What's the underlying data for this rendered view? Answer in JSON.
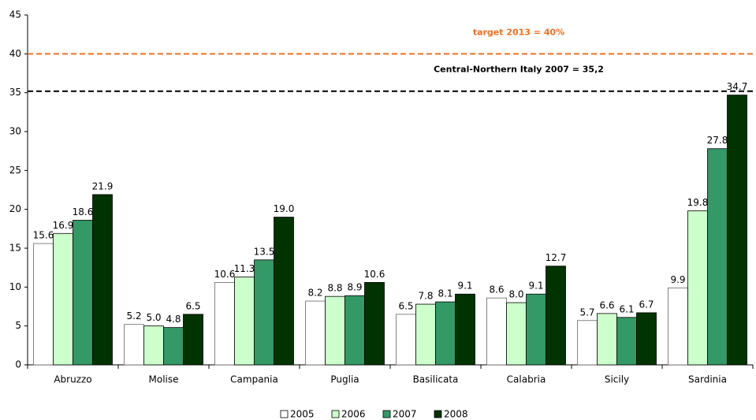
{
  "chart_data": {
    "type": "bar",
    "categories": [
      "Abruzzo",
      "Molise",
      "Campania",
      "Puglia",
      "Basilicata",
      "Calabria",
      "Sicily",
      "Sardinia"
    ],
    "series": [
      {
        "name": "2005",
        "color": "#ffffff",
        "values": [
          15.6,
          5.2,
          10.6,
          8.2,
          6.5,
          8.6,
          5.7,
          9.9
        ],
        "value_labels": [
          "15.6",
          "5.2",
          "10.6",
          "8.2",
          "6.5",
          "8.6",
          "5.7",
          "9.9"
        ]
      },
      {
        "name": "2006",
        "color": "#ccffcc",
        "values": [
          16.9,
          5.0,
          11.3,
          8.8,
          7.8,
          8.0,
          6.6,
          19.8
        ],
        "value_labels": [
          "16.9",
          "5.0",
          "11.3",
          "8.8",
          "7.8",
          "8.0",
          "6.6",
          "19.8"
        ]
      },
      {
        "name": "2007",
        "color": "#339966",
        "values": [
          18.6,
          4.8,
          13.5,
          8.9,
          8.1,
          9.1,
          6.1,
          27.8
        ],
        "value_labels": [
          "18.6",
          "4.8",
          "13.5",
          "8.9",
          "8.1",
          "9.1",
          "6.1",
          "27.8"
        ]
      },
      {
        "name": "2008",
        "color": "#003300",
        "values": [
          21.9,
          6.5,
          19.0,
          10.6,
          9.1,
          12.7,
          6.7,
          34.7
        ],
        "value_labels": [
          "21.9",
          "6.5",
          "19.0",
          "10.6",
          "9.1",
          "12.7",
          "6.7",
          "34.7"
        ]
      }
    ],
    "ylim": [
      0,
      45
    ],
    "yticks": [
      0,
      5,
      10,
      15,
      20,
      25,
      30,
      35,
      40,
      45
    ],
    "annotations": [
      {
        "label": "target 2013 = 40%",
        "value": 40,
        "color": "#f07020"
      },
      {
        "label": "Central-Northern Italy  2007 = 35,2",
        "value": 35.2,
        "color": "#000000"
      }
    ],
    "legend": "bottom"
  }
}
